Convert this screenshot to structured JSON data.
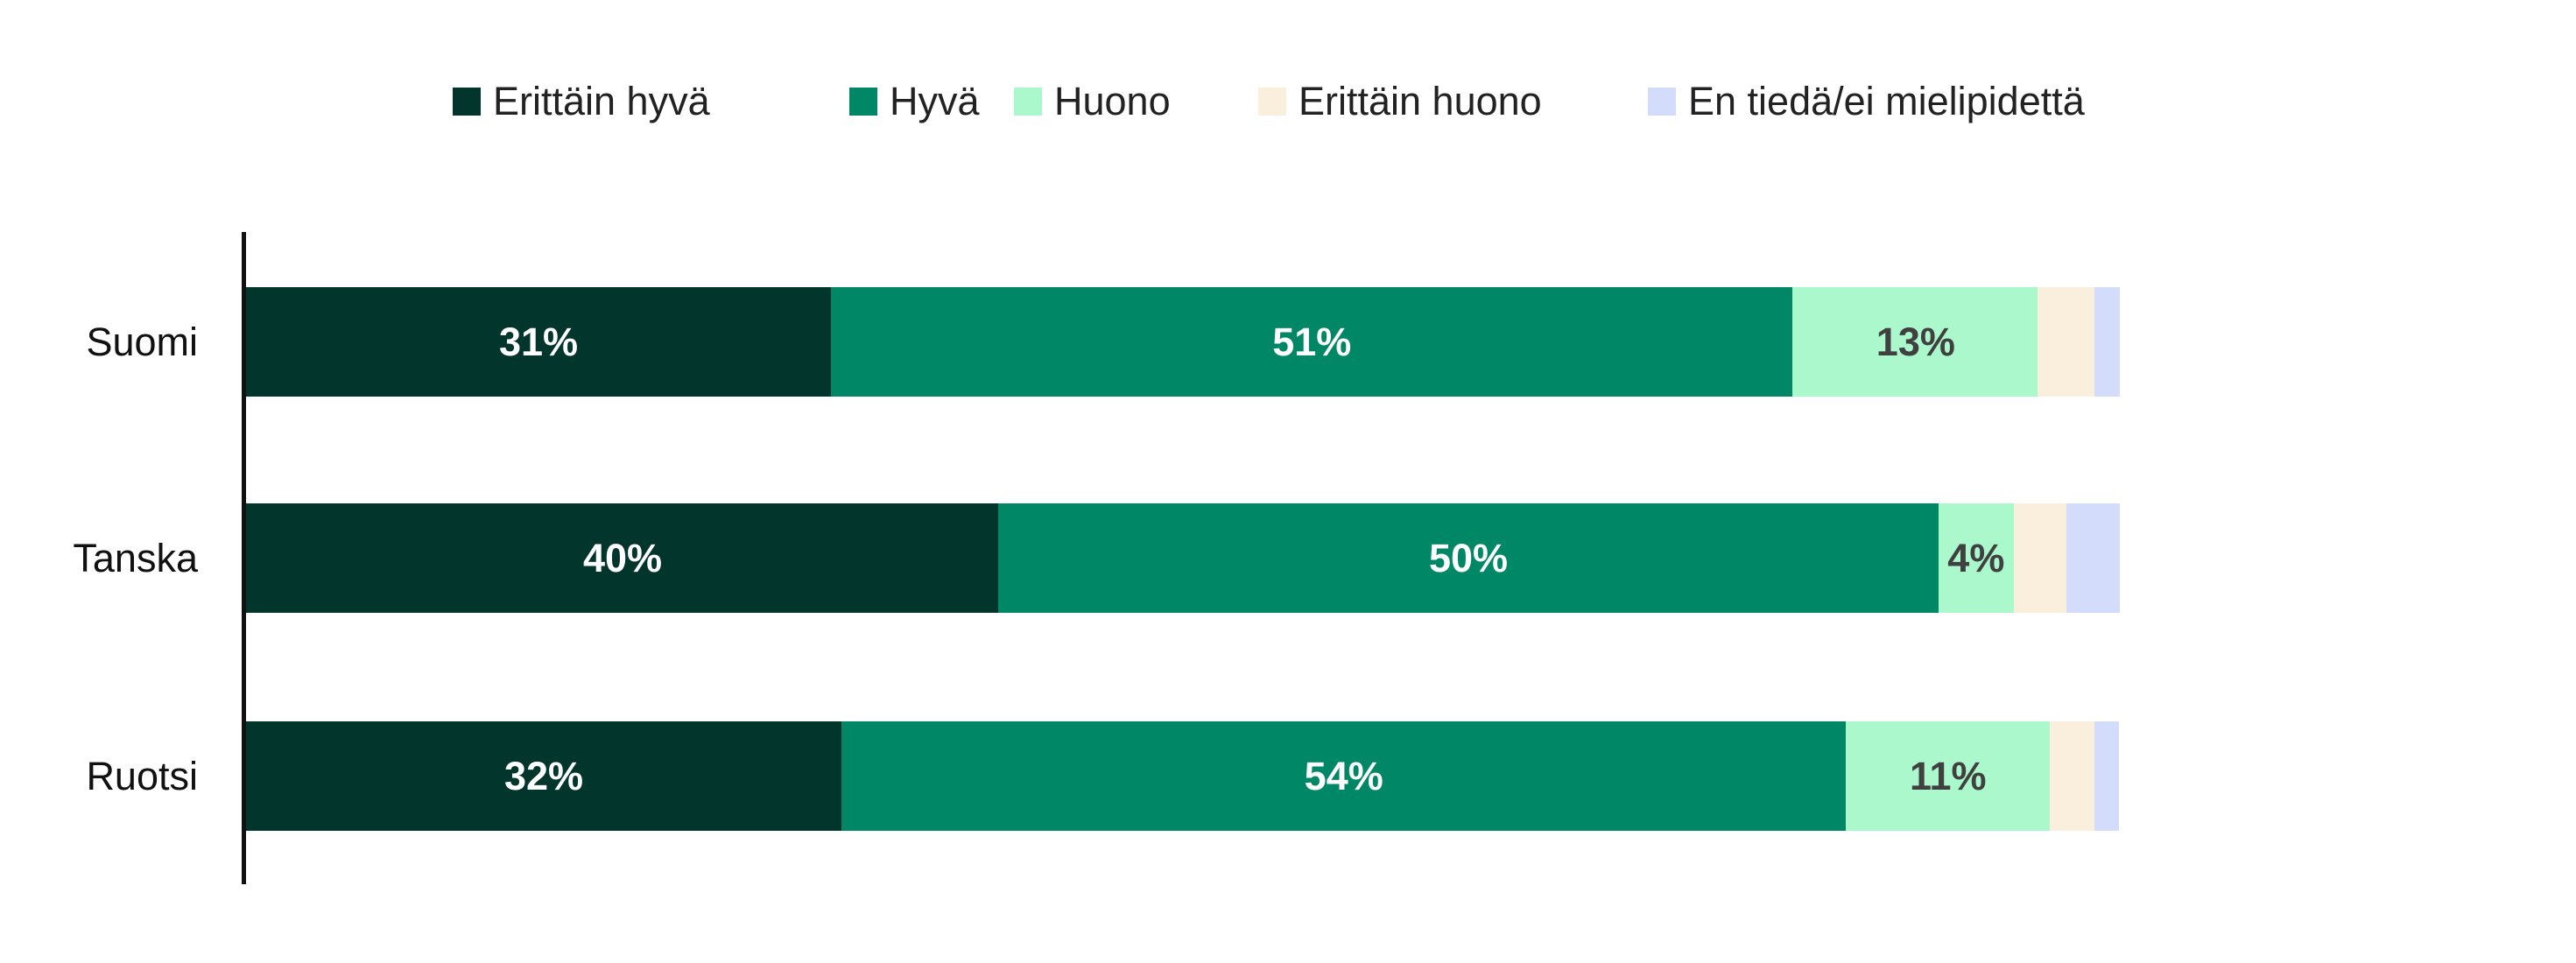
{
  "chart_data": {
    "type": "bar",
    "orientation": "horizontal",
    "stacked": true,
    "categories": [
      "Suomi",
      "Tanska",
      "Ruotsi"
    ],
    "series": [
      {
        "name": "Erittäin hyvä",
        "color": "#02352C",
        "values": [
          31,
          40,
          32
        ],
        "labels": [
          "31%",
          "40%",
          "32%"
        ],
        "label_color": "#ffffff"
      },
      {
        "name": "Hyvä",
        "color": "#008866",
        "values": [
          51,
          50,
          54
        ],
        "labels": [
          "51%",
          "50%",
          "54%"
        ],
        "label_color": "#ffffff"
      },
      {
        "name": "Huono",
        "color": "#AAF8CC",
        "values": [
          13,
          4,
          11
        ],
        "labels": [
          "13%",
          "4%",
          "11%"
        ],
        "label_color": "#404040"
      },
      {
        "name": "Erittäin huono",
        "color": "#FAEFDC",
        "values": [
          3,
          2.8,
          2.4
        ],
        "labels": [
          "",
          "",
          ""
        ]
      },
      {
        "name": "En tiedä/ei mielipidettä",
        "color": "#D3DDFB",
        "values": [
          1.3,
          2.8,
          1.3
        ],
        "labels": [
          "",
          "",
          ""
        ]
      }
    ],
    "xlim": [
      0,
      100
    ],
    "grid": false,
    "legend": "top"
  }
}
